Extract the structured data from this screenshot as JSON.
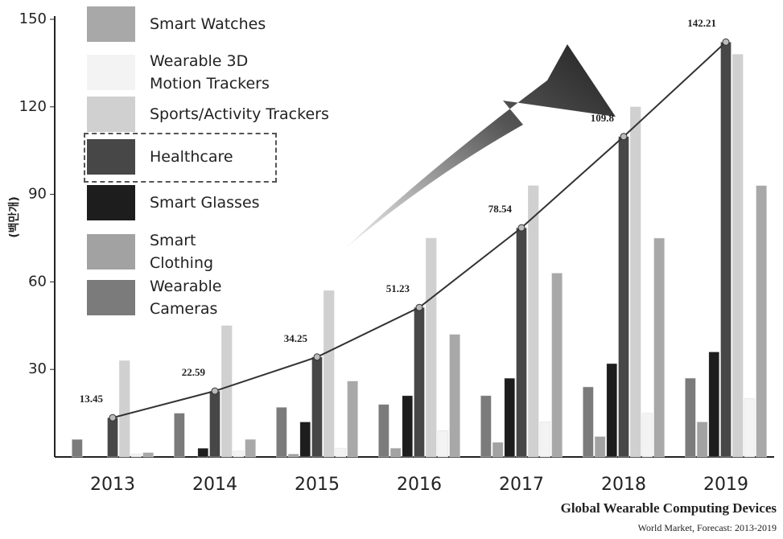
{
  "chart_data": {
    "type": "bar",
    "title": "Global Wearable Computing Devices",
    "subtitle": "World Market, Forecast: 2013-2019",
    "y_label": "(백만개)",
    "categories": [
      "2013",
      "2014",
      "2015",
      "2016",
      "2017",
      "2018",
      "2019"
    ],
    "series": [
      {
        "name": "Smart Watches",
        "color": "#a8a8a8",
        "values": [
          1.5,
          6,
          26,
          42,
          63,
          75,
          93
        ]
      },
      {
        "name": "Wearable 3D\nMotion Trackers",
        "color": "#f3f3f3",
        "values": [
          1,
          2,
          3,
          9,
          12,
          15,
          20
        ]
      },
      {
        "name": "Sports/Activity Trackers",
        "color": "#d0d0d0",
        "values": [
          33,
          45,
          57,
          75,
          93,
          120,
          138
        ]
      },
      {
        "name": "Healthcare",
        "color": "#474747",
        "values": [
          13.45,
          22.59,
          34.25,
          51.23,
          78.54,
          109.8,
          142.21
        ],
        "line": true,
        "highlight": true
      },
      {
        "name": "Smart Glasses",
        "color": "#1d1d1d",
        "values": [
          0,
          3,
          12,
          21,
          27,
          32,
          36
        ]
      },
      {
        "name": "Smart\nClothing",
        "color": "#a2a2a2",
        "values": [
          0,
          0,
          1,
          3,
          5,
          7,
          12
        ]
      },
      {
        "name": "Wearable\nCameras",
        "color": "#7b7b7b",
        "values": [
          6,
          15,
          17,
          18,
          21,
          24,
          27
        ]
      }
    ],
    "ylim": [
      0,
      150
    ],
    "yticks": [
      30,
      60,
      90,
      120,
      150
    ]
  }
}
